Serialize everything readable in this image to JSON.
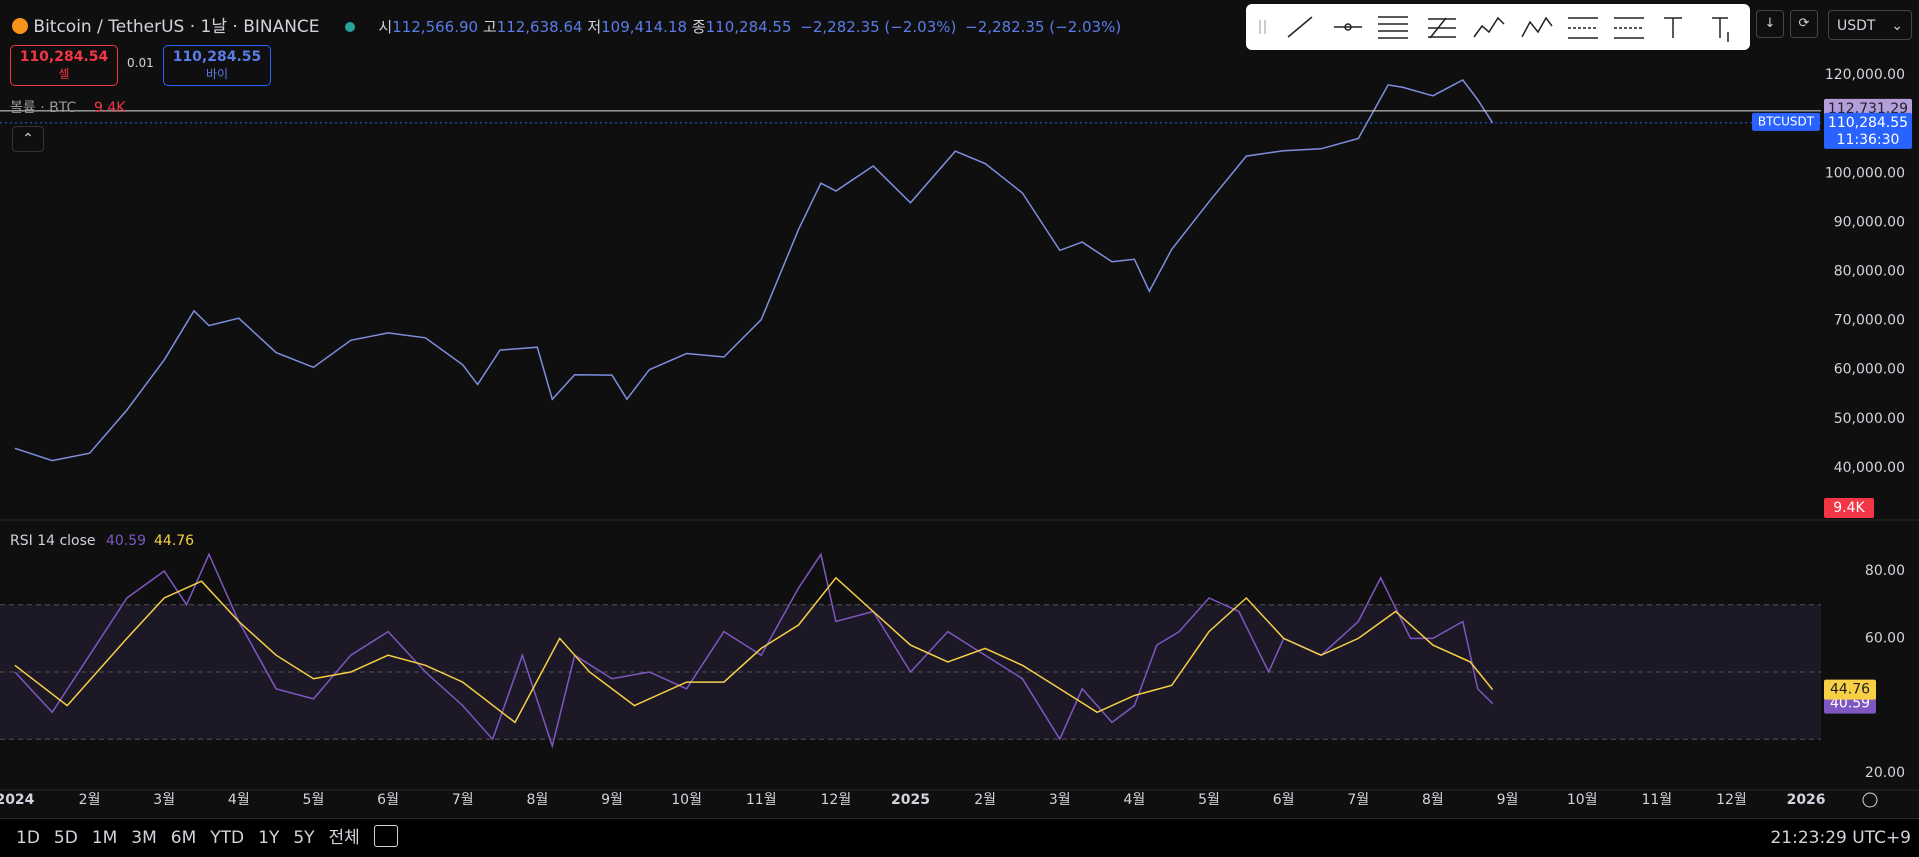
{
  "header": {
    "symbol": "Bitcoin / TetherUS · 1날 · BINANCE",
    "ohlc": [
      {
        "key": "시",
        "value": "112,566.90"
      },
      {
        "key": "고",
        "value": "112,638.64"
      },
      {
        "key": "저",
        "value": "109,414.18"
      },
      {
        "key": "종",
        "value": "110,284.55"
      }
    ],
    "change": "−2,282.35 (−2.03%)",
    "change_2": "−2,282.35 (−2.03%)"
  },
  "trade": {
    "sell_price": "110,284.54",
    "sell_label": "셀",
    "spread": "0.01",
    "buy_price": "110,284.55",
    "buy_label": "바이"
  },
  "toolbar": {
    "currency": "USDT"
  },
  "chart_data": [
    {
      "type": "line",
      "legend": "볼륨 · BTC",
      "volume_label": "9.4K",
      "color": "#7f8fe0",
      "x": [
        0,
        0.5,
        1,
        1.5,
        2,
        2.4,
        2.6,
        3,
        3.5,
        4,
        4.5,
        5,
        5.5,
        6,
        6.2,
        6.5,
        7,
        7.2,
        7.5,
        8,
        8.2,
        8.5,
        9,
        9.5,
        10,
        10.5,
        10.8,
        11,
        11.5,
        12,
        12.6,
        13,
        13.5,
        14,
        14.3,
        14.7,
        15,
        15.2,
        15.5,
        16,
        16.5,
        17,
        17.5,
        18,
        18.4,
        18.6,
        19,
        19.4,
        19.6,
        19.8
      ],
      "values": [
        44000,
        41500,
        43000,
        51800,
        62000,
        72000,
        69000,
        70500,
        63500,
        60500,
        66000,
        67500,
        66500,
        61000,
        57000,
        64000,
        64600,
        54000,
        59000,
        58900,
        54000,
        60000,
        63300,
        62600,
        70200,
        88600,
        98000,
        96400,
        101500,
        94000,
        104500,
        102000,
        96000,
        84300,
        86000,
        82000,
        82500,
        76000,
        84500,
        94200,
        103500,
        104600,
        105000,
        107100,
        118000,
        117500,
        115800,
        119000,
        115000,
        110284.55
      ],
      "xlim": [
        -0.2,
        24.2
      ],
      "ylim": [
        29400,
        135300
      ],
      "yticks": [
        {
          "value": 40000,
          "label": "40,000.00"
        },
        {
          "value": 50000,
          "label": "50,000.00"
        },
        {
          "value": 60000,
          "label": "60,000.00"
        },
        {
          "value": 70000,
          "label": "70,000.00"
        },
        {
          "value": 80000,
          "label": "80,000.00"
        },
        {
          "value": 90000,
          "label": "90,000.00"
        },
        {
          "value": 100000,
          "label": "100,000.00"
        },
        {
          "value": 120000,
          "label": "120,000.00"
        }
      ],
      "markers": [
        {
          "value": 112731.29,
          "label": "112,731.29",
          "color": "#b39ddb"
        },
        {
          "value": 110284.55,
          "label": "110,284.55",
          "sub": "11:36:30",
          "tag": "BTCUSDT",
          "color": "#2962ff"
        }
      ]
    },
    {
      "type": "line",
      "title": "RSI 14 close",
      "xlim": [
        -0.2,
        24.2
      ],
      "ylim": [
        14.9,
        95.2
      ],
      "yticks": [
        {
          "value": 20,
          "label": "20.00"
        },
        {
          "value": 60,
          "label": "60.00"
        },
        {
          "value": 80,
          "label": "80.00"
        }
      ],
      "levels": [
        70,
        50,
        30
      ],
      "xticks": [
        {
          "value": 0,
          "label": "2024"
        },
        {
          "value": 1,
          "label": "2월"
        },
        {
          "value": 2,
          "label": "3월"
        },
        {
          "value": 3,
          "label": "4월"
        },
        {
          "value": 4,
          "label": "5월"
        },
        {
          "value": 5,
          "label": "6월"
        },
        {
          "value": 6,
          "label": "7월"
        },
        {
          "value": 7,
          "label": "8월"
        },
        {
          "value": 8,
          "label": "9월"
        },
        {
          "value": 9,
          "label": "10월"
        },
        {
          "value": 10,
          "label": "11월"
        },
        {
          "value": 11,
          "label": "12월"
        },
        {
          "value": 12,
          "label": "2025"
        },
        {
          "value": 13,
          "label": "2월"
        },
        {
          "value": 14,
          "label": "3월"
        },
        {
          "value": 15,
          "label": "4월"
        },
        {
          "value": 16,
          "label": "5월"
        },
        {
          "value": 17,
          "label": "6월"
        },
        {
          "value": 18,
          "label": "7월"
        },
        {
          "value": 19,
          "label": "8월"
        },
        {
          "value": 20,
          "label": "9월"
        },
        {
          "value": 21,
          "label": "10월"
        },
        {
          "value": 22,
          "label": "11월"
        },
        {
          "value": 23,
          "label": "12월"
        },
        {
          "value": 24,
          "label": "2026"
        }
      ],
      "series": [
        {
          "color": "#7e57c2",
          "x": [
            0,
            0.5,
            1,
            1.5,
            2,
            2.3,
            2.6,
            3,
            3.5,
            4,
            4.5,
            5,
            5.5,
            6,
            6.4,
            6.8,
            7.2,
            7.5,
            8,
            8.5,
            9,
            9.5,
            10,
            10.5,
            10.8,
            11,
            11.5,
            12,
            12.5,
            13,
            13.5,
            14,
            14.3,
            14.7,
            15,
            15.3,
            15.6,
            16,
            16.4,
            16.8,
            17,
            17.5,
            18,
            18.3,
            18.7,
            19,
            19.4,
            19.6,
            19.8
          ],
          "values": [
            50,
            38,
            55,
            72,
            80,
            70,
            85,
            65,
            45,
            42,
            55,
            62,
            50,
            40,
            30,
            55,
            28,
            55,
            48,
            50,
            45,
            62,
            55,
            75,
            85,
            65,
            68,
            50,
            62,
            55,
            48,
            30,
            45,
            35,
            40,
            58,
            62,
            72,
            68,
            50,
            60,
            55,
            65,
            78,
            60,
            60,
            65,
            45,
            40.59
          ]
        },
        {
          "color": "#f7d046",
          "x": [
            0,
            0.7,
            1.5,
            2,
            2.5,
            3,
            3.5,
            4,
            4.5,
            5,
            5.5,
            6,
            6.7,
            7.3,
            7.7,
            8.3,
            9,
            9.5,
            10,
            10.5,
            11,
            11.5,
            12,
            12.5,
            13,
            13.5,
            14,
            14.5,
            15,
            15.5,
            16,
            16.5,
            17,
            17.5,
            18,
            18.5,
            19,
            19.5,
            19.8
          ],
          "values": [
            52,
            40,
            60,
            72,
            77,
            65,
            55,
            48,
            50,
            55,
            52,
            47,
            35,
            60,
            50,
            40,
            47,
            47,
            57,
            64,
            78,
            68,
            58,
            53,
            57,
            52,
            45,
            38,
            43,
            46,
            62,
            72,
            60,
            55,
            60,
            68,
            58,
            53,
            44.76
          ]
        }
      ]
    }
  ],
  "bottom_bar": {
    "ranges": [
      "1D",
      "5D",
      "1M",
      "3M",
      "6M",
      "YTD",
      "1Y",
      "5Y",
      "전체"
    ],
    "clock": "21:23:29 UTC+9"
  }
}
